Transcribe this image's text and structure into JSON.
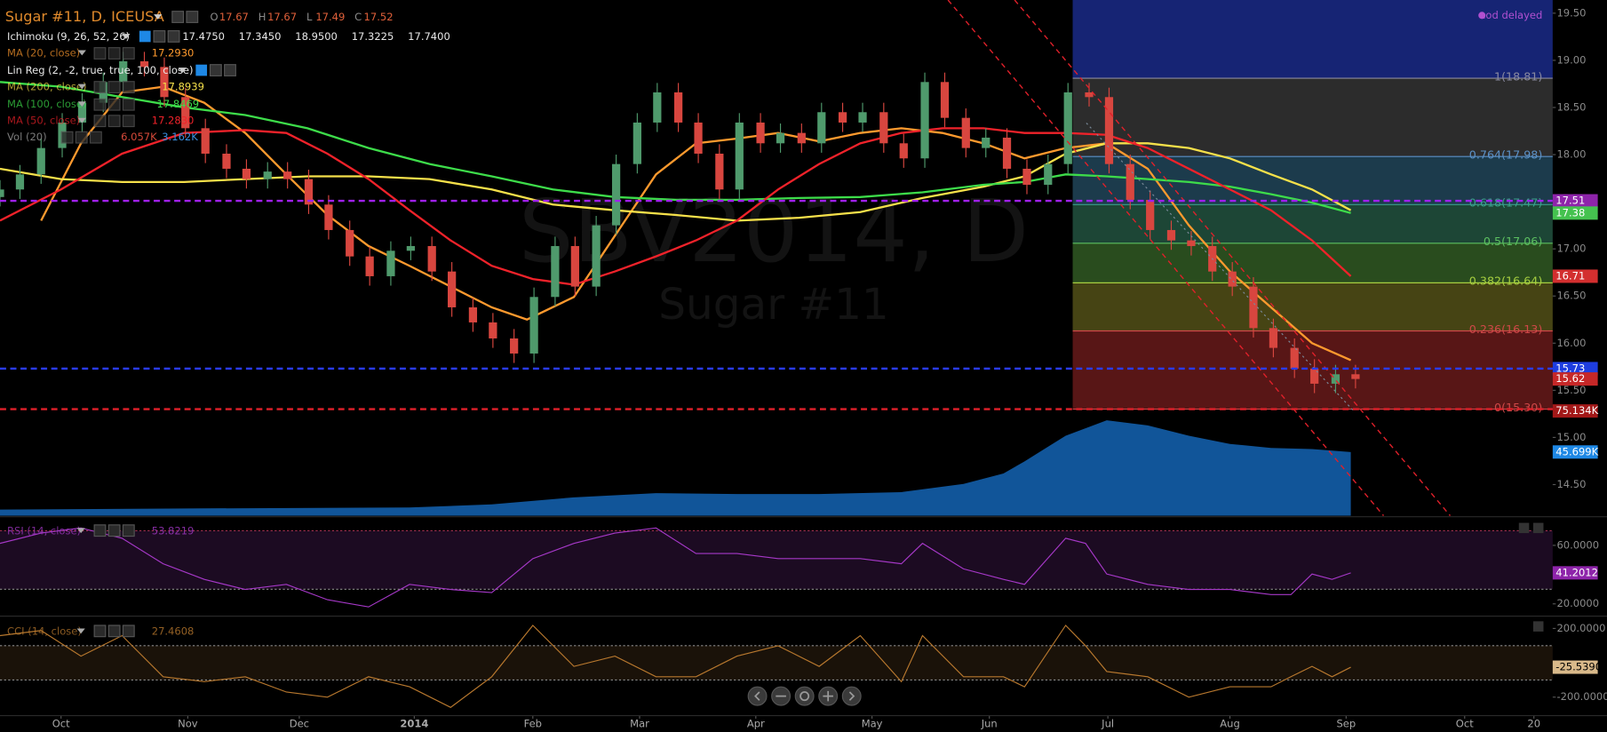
{
  "header": {
    "symbol": "Sugar #11, D, ICEUSA",
    "ohlc": [
      {
        "key": "O",
        "value": 17.67
      },
      {
        "key": "H",
        "value": 17.67
      },
      {
        "key": "L",
        "value": 17.49
      },
      {
        "key": "C",
        "value": 17.52
      }
    ],
    "studies": [
      {
        "name": "Ichimoku (9, 26, 52, 26)",
        "values": [
          "17.4750",
          "17.3450",
          "18.9500",
          "17.3225",
          "17.7400"
        ]
      },
      {
        "name": "Lin Reg (2, -2, true, true, 100, close)"
      }
    ],
    "status": "eod delayed"
  },
  "watermark": {
    "symbol": "SBV2014, D",
    "name": "Sugar #11"
  },
  "chart_data": [
    {
      "type": "candlestick",
      "x": [
        -0.52,
        -0.35,
        -0.17,
        0.01,
        0.18,
        0.36,
        0.53,
        0.71,
        0.88,
        1.06,
        1.23,
        1.41,
        1.58,
        1.76,
        1.93,
        2.11,
        2.28,
        2.46,
        2.63,
        2.81,
        2.98,
        3.16,
        3.33,
        3.51,
        3.68,
        3.86,
        4.03,
        4.21,
        4.38,
        4.56,
        4.73,
        4.91,
        5.08,
        5.26,
        5.43,
        5.61,
        5.78,
        5.96,
        6.13,
        6.31,
        6.48,
        6.66,
        6.83,
        7.01,
        7.18,
        7.36,
        7.53,
        7.71,
        7.88,
        8.06,
        8.23,
        8.41,
        8.58,
        8.76,
        8.93,
        9.11,
        9.28,
        9.46,
        9.63,
        9.81,
        9.98,
        10.16,
        10.33,
        10.51,
        10.68,
        10.86,
        11.03
      ],
      "open": [
        17.55,
        17.63,
        17.79,
        18.07,
        18.34,
        18.55,
        18.77,
        18.99,
        18.93,
        18.61,
        18.28,
        18.01,
        17.85,
        17.74,
        17.82,
        17.74,
        17.47,
        17.2,
        16.92,
        16.71,
        16.98,
        17.03,
        16.76,
        16.38,
        16.22,
        16.05,
        15.89,
        16.49,
        17.03,
        16.6,
        17.25,
        17.9,
        18.34,
        18.66,
        18.34,
        18.01,
        17.63,
        18.34,
        18.12,
        18.23,
        18.12,
        18.45,
        18.34,
        18.45,
        18.12,
        17.96,
        18.77,
        18.39,
        18.07,
        18.18,
        17.85,
        17.68,
        17.9,
        18.66,
        18.61,
        17.9,
        17.52,
        17.2,
        17.09,
        17.03,
        16.76,
        16.6,
        16.16,
        15.95,
        15.73,
        15.57,
        15.67
      ],
      "high": [
        17.73,
        17.89,
        18.17,
        18.44,
        18.65,
        18.87,
        19.09,
        19.09,
        19.03,
        18.71,
        18.38,
        18.11,
        17.95,
        17.92,
        17.92,
        17.84,
        17.57,
        17.3,
        17.02,
        17.08,
        17.13,
        17.13,
        16.86,
        16.48,
        16.32,
        16.15,
        16.59,
        17.13,
        17.13,
        17.35,
        18.0,
        18.44,
        18.76,
        18.76,
        18.44,
        18.11,
        18.44,
        18.44,
        18.33,
        18.33,
        18.55,
        18.55,
        18.55,
        18.55,
        18.22,
        18.87,
        18.87,
        18.49,
        18.28,
        18.28,
        17.95,
        18.0,
        18.76,
        18.76,
        18.71,
        18.0,
        17.62,
        17.3,
        17.19,
        17.13,
        16.86,
        16.7,
        16.26,
        16.05,
        15.83,
        15.77,
        15.77
      ],
      "low": [
        17.45,
        17.53,
        17.69,
        17.97,
        18.24,
        18.45,
        18.67,
        18.83,
        18.51,
        18.18,
        17.91,
        17.75,
        17.64,
        17.64,
        17.64,
        17.37,
        17.1,
        16.82,
        16.61,
        16.61,
        16.88,
        16.66,
        16.28,
        16.12,
        15.95,
        15.79,
        15.79,
        16.39,
        16.5,
        16.5,
        17.15,
        17.8,
        18.24,
        18.24,
        17.91,
        17.53,
        17.53,
        18.02,
        18.02,
        18.02,
        18.02,
        18.24,
        18.24,
        18.02,
        17.86,
        17.86,
        18.29,
        17.97,
        17.97,
        17.75,
        17.58,
        17.58,
        17.8,
        18.51,
        17.8,
        17.42,
        17.1,
        16.99,
        16.93,
        16.66,
        16.5,
        16.06,
        15.85,
        15.63,
        15.47,
        15.47,
        15.52
      ],
      "close": [
        17.63,
        17.79,
        18.07,
        18.34,
        18.55,
        18.77,
        18.99,
        18.93,
        18.61,
        18.28,
        18.01,
        17.85,
        17.74,
        17.82,
        17.74,
        17.47,
        17.2,
        16.92,
        16.71,
        16.98,
        17.03,
        16.76,
        16.38,
        16.22,
        16.05,
        15.89,
        16.49,
        17.03,
        16.6,
        17.25,
        17.9,
        18.34,
        18.66,
        18.34,
        18.01,
        17.63,
        18.34,
        18.12,
        18.23,
        18.12,
        18.45,
        18.34,
        18.45,
        18.12,
        17.96,
        18.77,
        18.39,
        18.07,
        18.18,
        17.85,
        17.68,
        17.9,
        18.66,
        18.61,
        17.9,
        17.52,
        17.2,
        17.09,
        17.03,
        16.76,
        16.6,
        16.16,
        15.95,
        15.73,
        15.57,
        15.67,
        15.62
      ],
      "up_color": "#4f9a6c",
      "down_color": "#d8463f",
      "xlim": [
        -0.52,
        12.71
      ],
      "xticks": [
        {
          "value": 0,
          "label": "Oct"
        },
        {
          "value": 1.08,
          "label": "Nov"
        },
        {
          "value": 2.03,
          "label": "Dec"
        },
        {
          "value": 3.01,
          "label": "2014"
        },
        {
          "value": 4.02,
          "label": "Feb"
        },
        {
          "value": 4.93,
          "label": "Mar"
        },
        {
          "value": 5.92,
          "label": "Apr"
        },
        {
          "value": 6.91,
          "label": "May"
        },
        {
          "value": 7.91,
          "label": "Jun"
        },
        {
          "value": 8.92,
          "label": "Jul"
        },
        {
          "value": 9.96,
          "label": "Aug"
        },
        {
          "value": 10.95,
          "label": "Sep"
        },
        {
          "value": 11.96,
          "label": "Oct"
        },
        {
          "value": 12.55,
          "label": "20"
        }
      ],
      "ylim": [
        14.17,
        19.64
      ],
      "yticks": [
        {
          "value": 14.5,
          "label": "14.50"
        },
        {
          "value": 15,
          "label": "15.00"
        },
        {
          "value": 15.5,
          "label": "15.50"
        },
        {
          "value": 16,
          "label": "16.00"
        },
        {
          "value": 16.5,
          "label": "16.50"
        },
        {
          "value": 17,
          "label": "17.00"
        },
        {
          "value": 17.5,
          "label": "17.50"
        },
        {
          "value": 18,
          "label": "18.00"
        },
        {
          "value": 18.5,
          "label": "18.50"
        },
        {
          "value": 19,
          "label": "19.00"
        },
        {
          "value": 19.5,
          "label": "19.50"
        }
      ],
      "grid": false,
      "series": [
        {
          "name": "MA (20, close)",
          "legend_value": "17.2930",
          "color": "#ff9a2e",
          "x": [
            -0.17,
            0.17,
            0.52,
            0.87,
            1.22,
            1.57,
            1.92,
            2.27,
            2.62,
            2.97,
            3.32,
            3.67,
            3.97,
            4.37,
            4.72,
            5.07,
            5.41,
            5.76,
            6.11,
            6.46,
            6.81,
            7.16,
            7.51,
            7.86,
            8.21,
            8.56,
            8.91,
            9.26,
            9.61,
            9.96,
            10.31,
            10.66,
            10.99
          ],
          "values": [
            17.3,
            18.12,
            18.66,
            18.72,
            18.55,
            18.23,
            17.79,
            17.36,
            17.03,
            16.82,
            16.6,
            16.38,
            16.25,
            16.49,
            17.14,
            17.79,
            18.12,
            18.17,
            18.23,
            18.14,
            18.23,
            18.28,
            18.23,
            18.12,
            17.96,
            18.07,
            18.12,
            17.85,
            17.25,
            16.76,
            16.38,
            16.0,
            15.82
          ]
        },
        {
          "name": "MA (200, close)",
          "legend_value": "17.8939",
          "color": "#f5e04a",
          "x": [
            -0.52,
            0,
            0.52,
            1.05,
            1.57,
            2.1,
            2.62,
            3.14,
            3.67,
            4.19,
            4.72,
            5.24,
            5.76,
            6.29,
            6.81,
            7.34,
            7.86,
            8.21,
            8.56,
            8.91,
            9.26,
            9.61,
            9.96,
            10.31,
            10.66,
            10.99
          ],
          "values": [
            17.85,
            17.74,
            17.71,
            17.71,
            17.74,
            17.77,
            17.77,
            17.74,
            17.63,
            17.47,
            17.41,
            17.36,
            17.3,
            17.33,
            17.39,
            17.54,
            17.66,
            17.77,
            18.01,
            18.12,
            18.12,
            18.07,
            17.96,
            17.79,
            17.63,
            17.41
          ]
        },
        {
          "name": "MA (100, close)",
          "legend_value": "17.8469",
          "color": "#3ddc4a",
          "x": [
            -0.52,
            0,
            0.52,
            1.05,
            1.57,
            2.1,
            2.62,
            3.14,
            3.67,
            4.19,
            4.72,
            5.24,
            5.76,
            6.29,
            6.81,
            7.34,
            7.86,
            8.21,
            8.56,
            8.91,
            9.26,
            9.61,
            9.96,
            10.31,
            10.66,
            10.99
          ],
          "values": [
            18.77,
            18.72,
            18.61,
            18.5,
            18.42,
            18.28,
            18.07,
            17.9,
            17.77,
            17.63,
            17.55,
            17.52,
            17.52,
            17.54,
            17.55,
            17.6,
            17.68,
            17.71,
            17.79,
            17.77,
            17.74,
            17.71,
            17.66,
            17.58,
            17.49,
            17.38
          ]
        },
        {
          "name": "MA (50, close)",
          "legend_value": "17.2830",
          "color": "#f0222a",
          "x": [
            -0.52,
            0,
            0.52,
            1.05,
            1.57,
            1.92,
            2.27,
            2.62,
            2.97,
            3.32,
            3.67,
            4.02,
            4.37,
            4.72,
            5.07,
            5.41,
            5.76,
            6.11,
            6.46,
            6.81,
            7.16,
            7.51,
            7.86,
            8.21,
            8.56,
            8.91,
            9.26,
            9.61,
            9.96,
            10.31,
            10.66,
            10.99
          ],
          "values": [
            17.3,
            17.63,
            18.01,
            18.23,
            18.26,
            18.23,
            18.01,
            17.74,
            17.41,
            17.09,
            16.82,
            16.68,
            16.62,
            16.76,
            16.92,
            17.09,
            17.3,
            17.63,
            17.9,
            18.12,
            18.23,
            18.28,
            18.28,
            18.23,
            18.23,
            18.21,
            18.07,
            17.85,
            17.63,
            17.41,
            17.09,
            16.71
          ]
        }
      ],
      "hlines": [
        {
          "value": 17.51,
          "color": "#a020f0"
        },
        {
          "value": 15.73,
          "color": "#2a3cff"
        },
        {
          "value": 15.3,
          "color": "#e0202a"
        }
      ],
      "price_labels": [
        {
          "value": 17.51,
          "color": "#8e24aa"
        },
        {
          "value": 17.38,
          "color": "#45c24f"
        },
        {
          "value": 16.71,
          "color": "#d32f2f"
        },
        {
          "value": 15.73,
          "color": "#1e3ee0"
        },
        {
          "value": 15.62,
          "color": "#c62828"
        }
      ],
      "fib": {
        "x_start": 8.62,
        "levels": [
          {
            "value": 18.81,
            "label": "1(18.81)"
          },
          {
            "value": 17.98,
            "label": "0.764(17.98)"
          },
          {
            "value": 17.47,
            "label": "0.618(17.47)"
          },
          {
            "value": 17.06,
            "label": "0.5(17.06)"
          },
          {
            "value": 16.64,
            "label": "0.382(16.64)"
          },
          {
            "value": 16.13,
            "label": "0.236(16.13)"
          },
          {
            "value": 15.3,
            "label": "0(15.30)"
          }
        ],
        "zone_colors": [
          "#162474",
          "#2c2c2c",
          "#1c3b4c",
          "#1d4636",
          "#294c1e",
          "#464414",
          "#581616"
        ],
        "line_colors": [
          "#8a8aa0",
          "#5c92c8",
          "#3aa08a",
          "#5cc060",
          "#a8d040",
          "#d04848",
          "#d04848"
        ]
      }
    },
    {
      "type": "area",
      "name": "Vol (20)",
      "legend_values": [
        "6.057K",
        "3.162K"
      ],
      "legend_colors": [
        "#d84a3a",
        "#3a8fe0"
      ],
      "color": "#1464b4",
      "x": [
        -0.52,
        1.22,
        2.97,
        3.67,
        4.37,
        5.07,
        5.76,
        6.46,
        7.16,
        7.69,
        8.03,
        8.21,
        8.56,
        8.91,
        9.26,
        9.61,
        9.96,
        10.31,
        10.66,
        10.99
      ],
      "values": [
        4.4,
        5.2,
        5.9,
        8.1,
        13.2,
        16.2,
        15.5,
        15.5,
        16.9,
        22.8,
        30.2,
        39.0,
        57.4,
        68.4,
        64.8,
        57.4,
        51.5,
        48.6,
        47.8,
        45.699
      ],
      "ylim": [
        0,
        370
      ],
      "markers": [
        {
          "value": 75.134,
          "label": "75.134K",
          "color": "#a31818"
        },
        {
          "value": 45.699,
          "label": "45.699K",
          "color": "#1e88e5"
        }
      ]
    },
    {
      "type": "line",
      "name": "RSI (14, close)",
      "legend_value": "53.8219",
      "color": "#a638c8",
      "x": [
        -0.52,
        -0.17,
        0.17,
        0.52,
        0.87,
        1.22,
        1.57,
        1.92,
        2.27,
        2.62,
        2.97,
        3.32,
        3.67,
        4.02,
        4.37,
        4.72,
        5.07,
        5.41,
        5.76,
        6.11,
        6.46,
        6.81,
        7.16,
        7.34,
        7.69,
        8.03,
        8.21,
        8.56,
        8.73,
        8.91,
        9.26,
        9.61,
        9.96,
        10.31,
        10.48,
        10.66,
        10.83,
        10.99
      ],
      "values": [
        61.4,
        68.4,
        71.9,
        64.9,
        47.4,
        36.8,
        29.8,
        33.3,
        22.8,
        17.9,
        33.3,
        29.8,
        27.7,
        50.9,
        61.4,
        68.4,
        71.9,
        54.4,
        54.4,
        50.9,
        50.9,
        50.9,
        47.4,
        61.4,
        43.9,
        36.8,
        33.3,
        64.9,
        61.4,
        40.4,
        33.3,
        29.8,
        29.8,
        26.3,
        26.3,
        40.4,
        36.8,
        41.2012
      ],
      "ylim": [
        12.3,
        78.9
      ],
      "yticks": [
        {
          "value": 60,
          "label": "60.0000"
        },
        {
          "value": 20,
          "label": "20.0000"
        }
      ],
      "bands": [
        70,
        30
      ],
      "band_color": "#1c0b22",
      "last_label": {
        "value": 41.2012,
        "color": "#8e24aa"
      }
    },
    {
      "type": "line",
      "name": "CCI (14, close)",
      "legend_value": "27.4608",
      "color": "#b8782e",
      "x": [
        -0.52,
        -0.17,
        0.17,
        0.52,
        0.87,
        1.22,
        1.57,
        1.92,
        2.27,
        2.62,
        2.97,
        3.32,
        3.67,
        4.02,
        4.37,
        4.72,
        5.07,
        5.41,
        5.76,
        6.11,
        6.46,
        6.81,
        7.16,
        7.34,
        7.69,
        8.03,
        8.21,
        8.56,
        8.73,
        8.91,
        9.26,
        9.61,
        9.96,
        10.31,
        10.48,
        10.66,
        10.83,
        10.99
      ],
      "values": [
        158,
        188,
        39,
        158,
        -81,
        -110,
        -81,
        -170,
        -200,
        -81,
        -140,
        -260,
        -81,
        218,
        -21,
        39,
        -81,
        -81,
        39,
        99,
        -21,
        158,
        -110,
        158,
        -81,
        -81,
        -140,
        218,
        99,
        -51,
        -81,
        -200,
        -140,
        -140,
        -81,
        -21,
        -81,
        -25.539
      ],
      "ylim": [
        -301.5,
        259.7
      ],
      "yticks": [
        {
          "value": 200,
          "label": "200.0000"
        },
        {
          "value": -200,
          "label": "-200.0000"
        }
      ],
      "bands": [
        100,
        -100
      ],
      "band_color": "#1a1209",
      "last_label": {
        "value": -25.539,
        "label": "-25.5390",
        "color": "#d9b98a"
      }
    }
  ]
}
